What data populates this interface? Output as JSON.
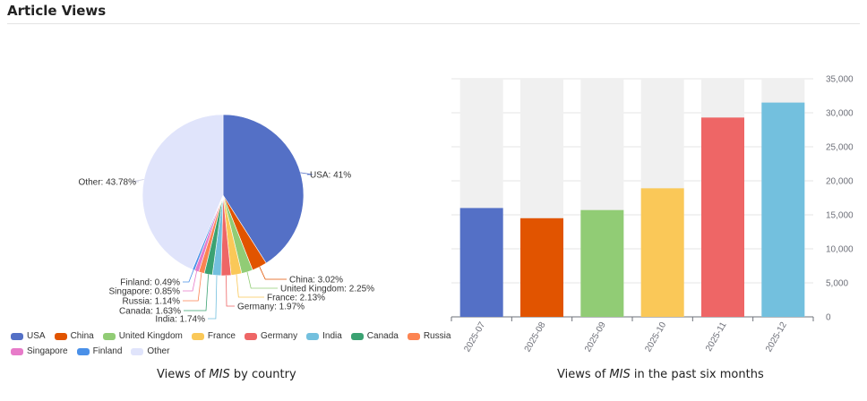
{
  "header": {
    "title": "Article Views"
  },
  "captions": {
    "pie": {
      "pre": "Views of ",
      "em": "MIS",
      "post": " by country"
    },
    "bar": {
      "pre": "Views of ",
      "em": "MIS",
      "post": " in the past six months"
    }
  },
  "chart_data": [
    {
      "type": "pie",
      "slices": [
        {
          "name": "USA",
          "value": 41,
          "label": "USA: 41%",
          "color": "#5470c6"
        },
        {
          "name": "China",
          "value": 3.02,
          "label": "China: 3.02%",
          "color": "#e15400"
        },
        {
          "name": "United Kingdom",
          "value": 2.25,
          "label": "United Kingdom: 2.25%",
          "color": "#91cc75"
        },
        {
          "name": "France",
          "value": 2.13,
          "label": "France: 2.13%",
          "color": "#fac858"
        },
        {
          "name": "Germany",
          "value": 1.97,
          "label": "Germany: 1.97%",
          "color": "#ee6666"
        },
        {
          "name": "India",
          "value": 1.74,
          "label": "India: 1.74%",
          "color": "#73c0de"
        },
        {
          "name": "Canada",
          "value": 1.63,
          "label": "Canada: 1.63%",
          "color": "#3ba272"
        },
        {
          "name": "Russia",
          "value": 1.14,
          "label": "Russia: 1.14%",
          "color": "#fc8452"
        },
        {
          "name": "Singapore",
          "value": 0.85,
          "label": "Singapore: 0.85%",
          "color": "#e77bc9"
        },
        {
          "name": "Finland",
          "value": 0.49,
          "label": "Finland: 0.49%",
          "color": "#4a90e8"
        },
        {
          "name": "Other",
          "value": 43.78,
          "label": "Other: 43.78%",
          "color": "#e0e4fb"
        }
      ],
      "legend_position": "bottom-left"
    },
    {
      "type": "bar",
      "categories": [
        "2025-07",
        "2025-08",
        "2025-09",
        "2025-10",
        "2025-11",
        "2025-12"
      ],
      "values": [
        16000,
        14500,
        15700,
        18900,
        29300,
        31500
      ],
      "colors": [
        "#5470c6",
        "#e15400",
        "#91cc75",
        "#fac858",
        "#ee6666",
        "#73c0de"
      ],
      "background_bars": true,
      "ylim": [
        0,
        35000
      ],
      "yticks": [
        "0",
        "5,000",
        "10,000",
        "15,000",
        "20,000",
        "25,000",
        "30,000",
        "35,000"
      ],
      "y_axis_position": "right",
      "grid": true
    }
  ]
}
